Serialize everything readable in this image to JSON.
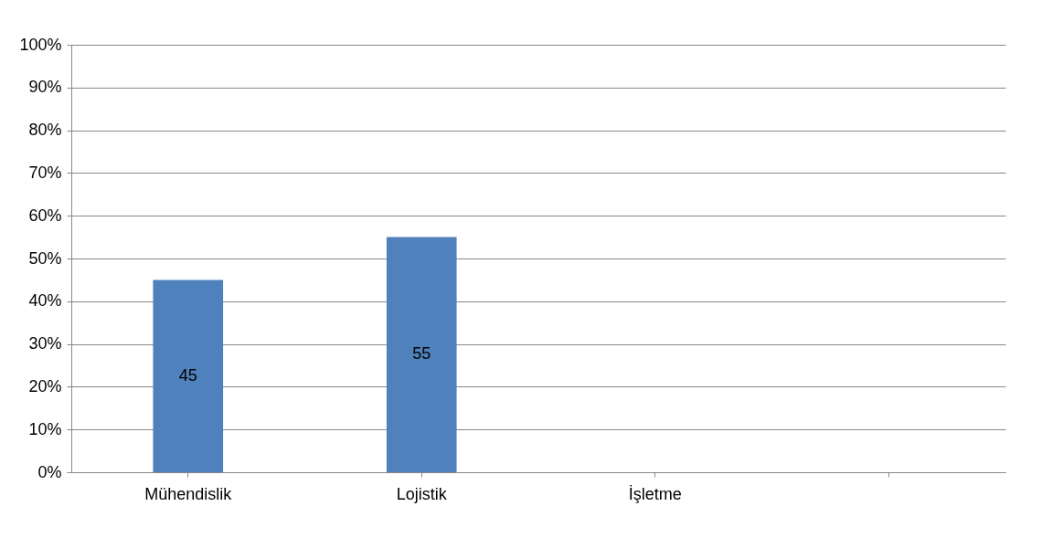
{
  "chart_data": {
    "type": "bar",
    "categories": [
      "Mühendislik",
      "Lojistik",
      "İşletme",
      null
    ],
    "values": [
      45,
      55,
      0,
      null
    ],
    "color": "#4f81bd",
    "value_labels": [
      "45",
      "55",
      null,
      null
    ],
    "ylim": [
      0,
      100
    ],
    "yticks": [
      {
        "value": 0,
        "label": "0%"
      },
      {
        "value": 10,
        "label": "10%"
      },
      {
        "value": 20,
        "label": "20%"
      },
      {
        "value": 30,
        "label": "30%"
      },
      {
        "value": 40,
        "label": "40%"
      },
      {
        "value": 50,
        "label": "50%"
      },
      {
        "value": 60,
        "label": "60%"
      },
      {
        "value": 70,
        "label": "70%"
      },
      {
        "value": 80,
        "label": "80%"
      },
      {
        "value": 90,
        "label": "90%"
      },
      {
        "value": 100,
        "label": "100%"
      }
    ],
    "grid": "y"
  }
}
